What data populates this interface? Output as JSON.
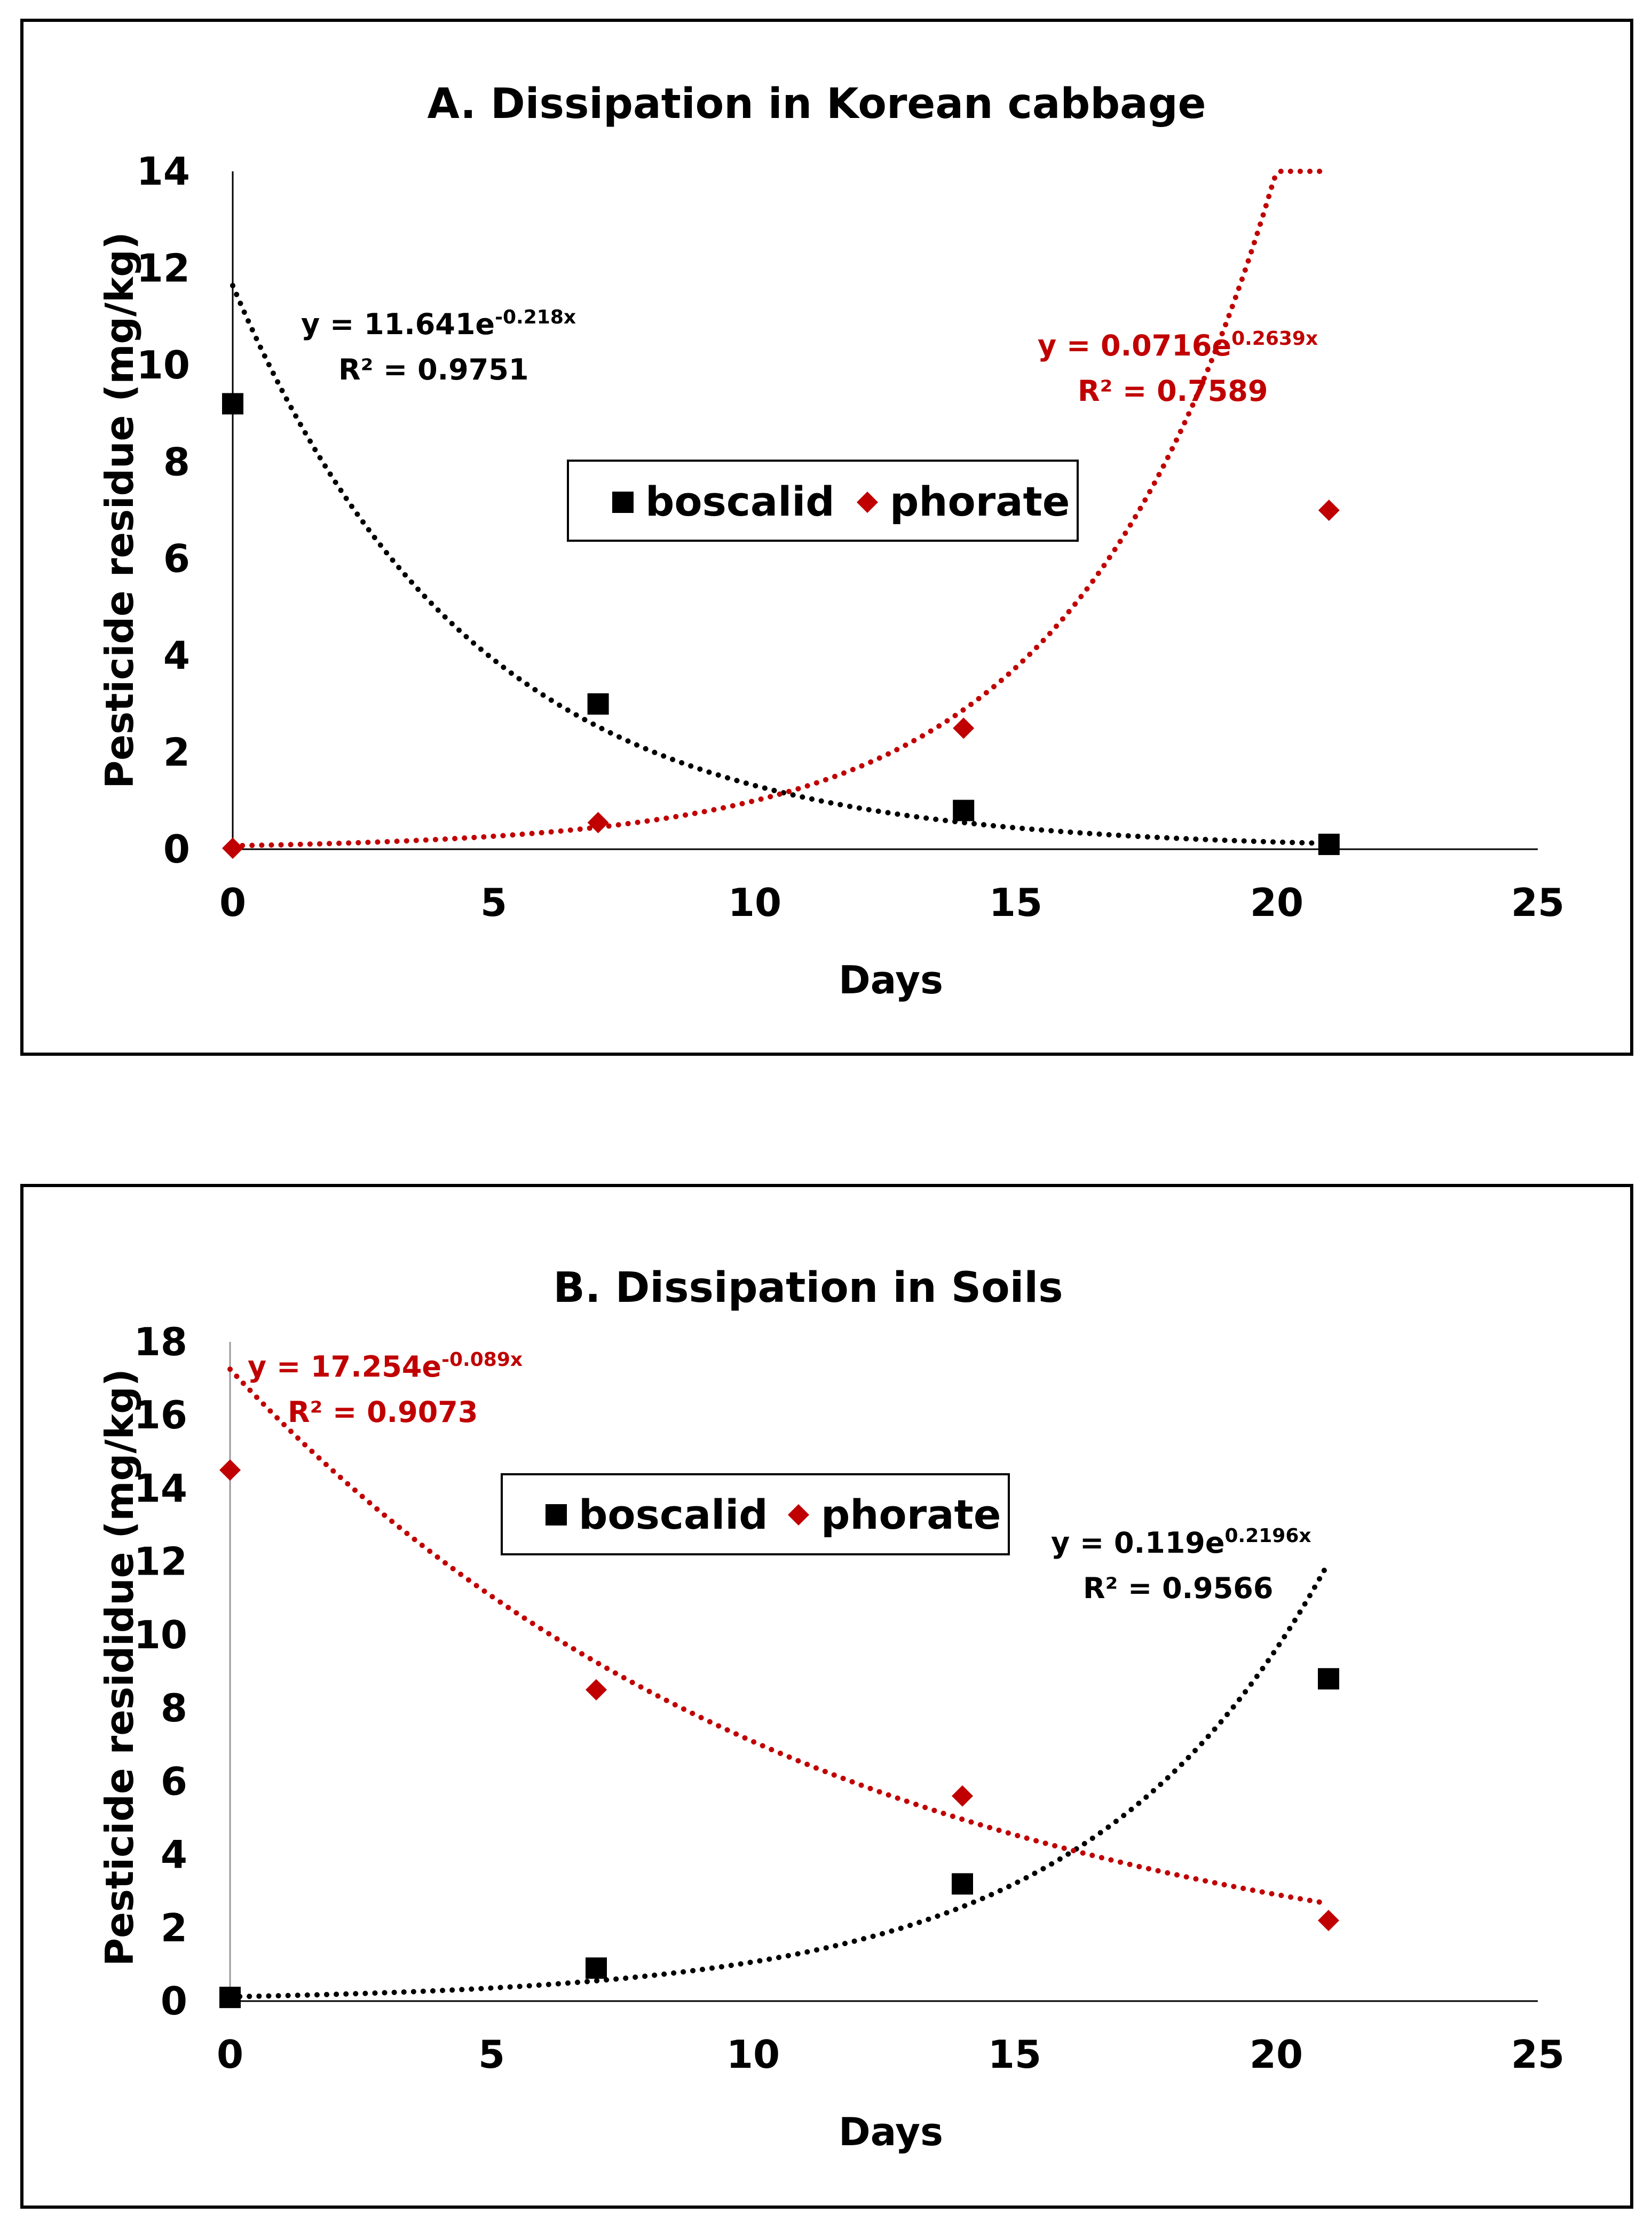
{
  "chart_data": [
    {
      "type": "scatter",
      "title": "A. Dissipation in Korean cabbage",
      "xlabel": "Days",
      "ylabel": "Pesticide residue (mg/kg)",
      "xlim": [
        0,
        25
      ],
      "ylim": [
        0,
        14
      ],
      "x_ticks": [
        "0",
        "5",
        "10",
        "15",
        "20",
        "25"
      ],
      "y_ticks": [
        "0",
        "2",
        "4",
        "6",
        "8",
        "10",
        "12",
        "14"
      ],
      "legend_position": "center",
      "series": [
        {
          "name": "boscalid",
          "marker": "square",
          "color": "#000000",
          "x": [
            0,
            7,
            14,
            21
          ],
          "y": [
            9.2,
            3.0,
            0.8,
            0.1
          ],
          "trendline": {
            "a": 11.641,
            "b": -0.218,
            "equation": "y = 11.641e",
            "exponent": "-0.218x",
            "r2": "R² = 0.9751"
          }
        },
        {
          "name": "phorate",
          "marker": "diamond",
          "color": "#C00000",
          "x": [
            0,
            7,
            14,
            21
          ],
          "y": [
            0.02,
            0.55,
            2.5,
            7.0
          ],
          "trendline": {
            "a": 0.0716,
            "b": 0.2639,
            "equation": "y = 0.0716e",
            "exponent": "0.2639x",
            "r2": "R² = 0.7589"
          }
        }
      ]
    },
    {
      "type": "scatter",
      "title": "B. Dissipation in Soils",
      "xlabel": "Days",
      "ylabel": "Pesticide resididue (mg/kg)",
      "xlim": [
        0,
        25
      ],
      "ylim": [
        0,
        18
      ],
      "x_ticks": [
        "0",
        "5",
        "10",
        "15",
        "20",
        "25"
      ],
      "y_ticks": [
        "0",
        "2",
        "4",
        "6",
        "8",
        "10",
        "12",
        "14",
        "16",
        "18"
      ],
      "legend_position": "top-center",
      "series": [
        {
          "name": "boscalid",
          "marker": "square",
          "color": "#000000",
          "x": [
            0,
            7,
            14,
            21
          ],
          "y": [
            0.1,
            0.9,
            3.2,
            8.8
          ],
          "trendline": {
            "a": 0.119,
            "b": 0.2196,
            "equation": "y = 0.119e",
            "exponent": "0.2196x",
            "r2": "R² = 0.9566"
          }
        },
        {
          "name": "phorate",
          "marker": "diamond",
          "color": "#C00000",
          "x": [
            0,
            7,
            14,
            21
          ],
          "y": [
            14.5,
            8.5,
            5.6,
            2.2
          ],
          "trendline": {
            "a": 17.254,
            "b": -0.089,
            "equation": "y = 17.254e",
            "exponent": "-0.089x",
            "r2": "R² = 0.9073"
          }
        }
      ]
    }
  ]
}
